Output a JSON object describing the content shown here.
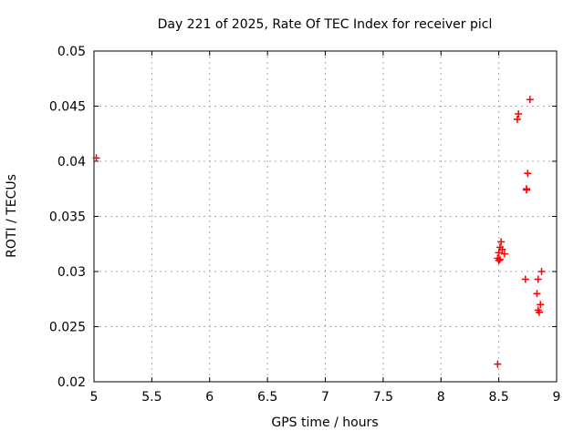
{
  "page": {
    "background": "#ffffff"
  },
  "chart_data": {
    "type": "scatter",
    "title": "Day 221 of 2025, Rate Of TEC Index for receiver picl",
    "xlabel": "GPS time / hours",
    "ylabel": "ROTI / TECUs",
    "xlim": [
      5,
      9
    ],
    "ylim": [
      0.02,
      0.05
    ],
    "x_ticks": [
      {
        "v": 5,
        "label": "5"
      },
      {
        "v": 5.5,
        "label": "5.5"
      },
      {
        "v": 6,
        "label": "6"
      },
      {
        "v": 6.5,
        "label": "6.5"
      },
      {
        "v": 7,
        "label": "7"
      },
      {
        "v": 7.5,
        "label": "7.5"
      },
      {
        "v": 8,
        "label": "8"
      },
      {
        "v": 8.5,
        "label": "8.5"
      },
      {
        "v": 9,
        "label": "9"
      }
    ],
    "y_ticks": [
      {
        "v": 0.02,
        "label": "0.02"
      },
      {
        "v": 0.025,
        "label": "0.025"
      },
      {
        "v": 0.03,
        "label": "0.03"
      },
      {
        "v": 0.035,
        "label": "0.035"
      },
      {
        "v": 0.04,
        "label": "0.04"
      },
      {
        "v": 0.045,
        "label": "0.045"
      },
      {
        "v": 0.05,
        "label": "0.05"
      }
    ],
    "grid": true,
    "legend_position": "none",
    "axis_color": "#000000",
    "grid_color": "#aaaaaa",
    "marker": "plus",
    "marker_color": "#ff0000",
    "series": [
      {
        "name": "ROTI",
        "points": [
          [
            5.02,
            0.0403
          ],
          [
            8.49,
            0.0216
          ],
          [
            8.49,
            0.0312
          ],
          [
            8.5,
            0.031
          ],
          [
            8.5,
            0.0317
          ],
          [
            8.51,
            0.0322
          ],
          [
            8.51,
            0.0311
          ],
          [
            8.52,
            0.0327
          ],
          [
            8.53,
            0.032
          ],
          [
            8.55,
            0.0316
          ],
          [
            8.66,
            0.0438
          ],
          [
            8.67,
            0.0443
          ],
          [
            8.73,
            0.0293
          ],
          [
            8.74,
            0.0375
          ],
          [
            8.74,
            0.0374
          ],
          [
            8.75,
            0.0389
          ],
          [
            8.77,
            0.0456
          ],
          [
            8.83,
            0.028
          ],
          [
            8.84,
            0.0293
          ],
          [
            8.84,
            0.0265
          ],
          [
            8.85,
            0.0263
          ],
          [
            8.86,
            0.027
          ],
          [
            8.87,
            0.03
          ]
        ]
      }
    ]
  }
}
